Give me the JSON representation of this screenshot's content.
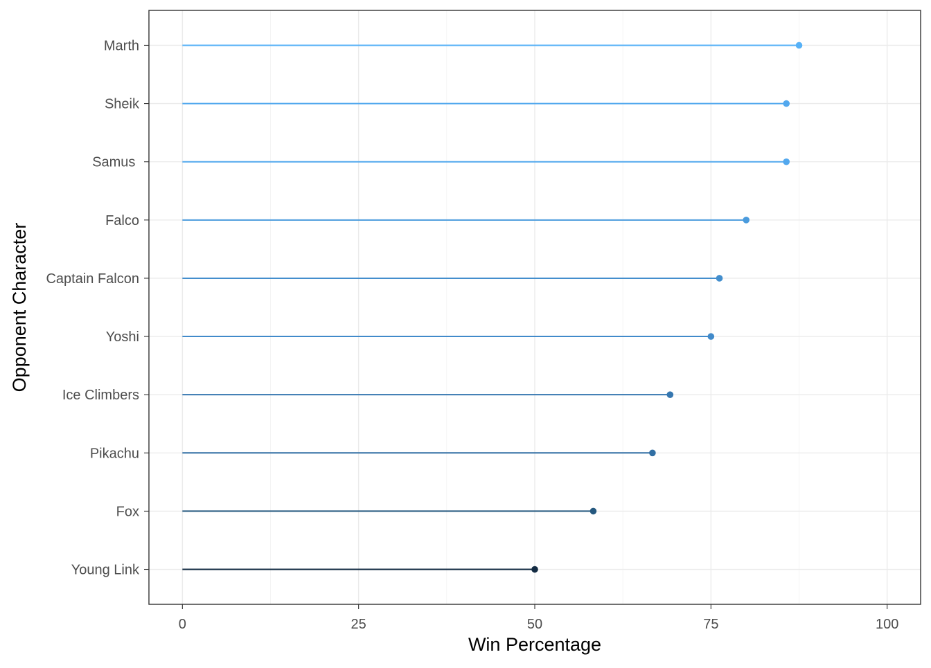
{
  "chart_data": {
    "type": "lollipop",
    "orientation": "horizontal",
    "xlabel": "Win Percentage",
    "ylabel": "Opponent Character",
    "xlim": [
      -4.75,
      104.75
    ],
    "x_ticks": [
      0,
      25,
      50,
      75,
      100
    ],
    "x_tick_labels": [
      "0",
      "25",
      "50",
      "75",
      "100"
    ],
    "grid": true,
    "categories": [
      "Marth",
      "Sheik",
      "Samus ",
      "Falco",
      "Captain Falcon",
      "Yoshi",
      "Ice Climbers",
      "Pikachu",
      "Fox",
      "Young Link"
    ],
    "values": [
      87.5,
      85.7,
      85.7,
      80.0,
      76.2,
      75.0,
      69.2,
      66.7,
      58.3,
      50.0
    ],
    "colors": [
      "#56B1F7",
      "#52A8EE",
      "#52A8EE",
      "#4A9BDD",
      "#438ECD",
      "#418ACA",
      "#3677B0",
      "#316FA4",
      "#25587F",
      "#132B43"
    ]
  }
}
